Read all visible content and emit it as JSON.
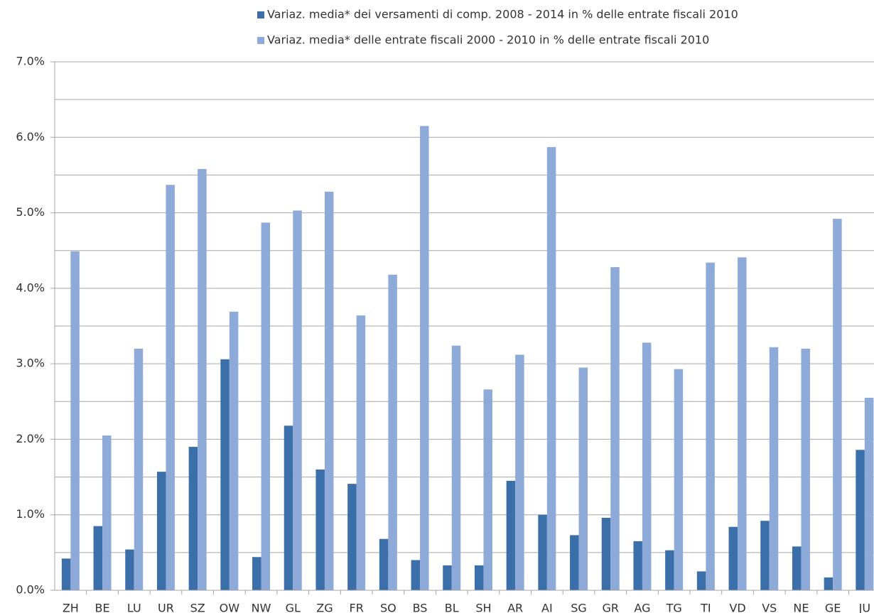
{
  "chart_data": {
    "type": "bar",
    "categories": [
      "ZH",
      "BE",
      "LU",
      "UR",
      "SZ",
      "OW",
      "NW",
      "GL",
      "ZG",
      "FR",
      "SO",
      "BS",
      "BL",
      "SH",
      "AR",
      "AI",
      "SG",
      "GR",
      "AG",
      "TG",
      "TI",
      "VD",
      "VS",
      "NE",
      "GE",
      "JU"
    ],
    "series": [
      {
        "name": "Variaz. media* dei versamenti di comp. 2008 - 2014 in % delle entrate fiscali 2010",
        "color": "#3b6fa9",
        "values": [
          0.42,
          0.85,
          0.54,
          1.57,
          1.9,
          3.06,
          0.44,
          2.18,
          1.6,
          1.41,
          0.68,
          0.4,
          0.33,
          0.33,
          1.45,
          1.0,
          0.73,
          0.96,
          0.65,
          0.53,
          0.25,
          0.84,
          0.92,
          0.58,
          0.17,
          1.86
        ]
      },
      {
        "name": "Variaz. media* delle entrate fiscali 2000 - 2010 in % delle entrate fiscali 2010",
        "color": "#8eaad8",
        "values": [
          4.49,
          2.05,
          3.2,
          5.37,
          5.58,
          3.69,
          4.87,
          5.03,
          5.28,
          3.64,
          4.18,
          6.15,
          3.24,
          2.66,
          3.12,
          5.87,
          2.95,
          4.28,
          3.28,
          2.93,
          4.34,
          4.41,
          3.22,
          3.2,
          4.92,
          2.55
        ]
      }
    ],
    "ylim": [
      0,
      7
    ],
    "yticks": [
      {
        "value": 0,
        "label": "0.0%"
      },
      {
        "value": 1,
        "label": "1.0%"
      },
      {
        "value": 2,
        "label": "2.0%"
      },
      {
        "value": 3,
        "label": "3.0%"
      },
      {
        "value": 4,
        "label": "4.0%"
      },
      {
        "value": 5,
        "label": "5.0%"
      },
      {
        "value": 6,
        "label": "6.0%"
      },
      {
        "value": 7,
        "label": "7.0%"
      }
    ],
    "minor_grid": [
      0.5,
      1.5,
      2.5,
      3.5,
      4.5,
      5.5,
      6.5
    ],
    "grid": true,
    "legend": "top"
  }
}
